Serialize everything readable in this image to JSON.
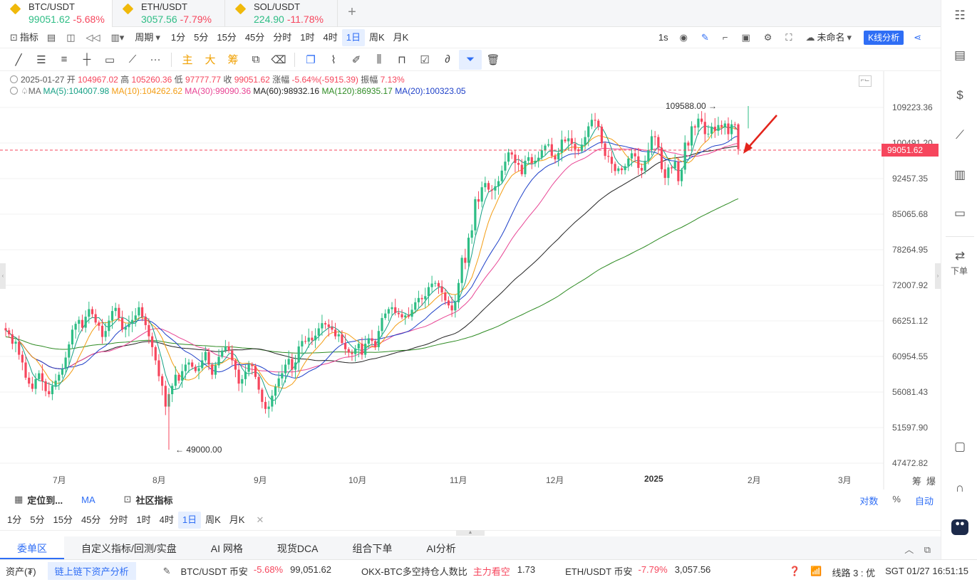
{
  "tabs": [
    {
      "symbol": "BTC/USDT",
      "price": "99051.62",
      "change": "-5.68%"
    },
    {
      "symbol": "ETH/USDT",
      "price": "3057.56",
      "change": "-7.79%"
    },
    {
      "symbol": "SOL/USDT",
      "price": "224.90",
      "change": "-11.78%"
    }
  ],
  "toolbar1": {
    "indicators": "指标",
    "period": "周期",
    "intervals": [
      "1分",
      "5分",
      "15分",
      "45分",
      "分时",
      "1时",
      "4时",
      "1日",
      "周K",
      "月K"
    ],
    "active_interval": "1日",
    "speed": "1s",
    "layout_name": "未命名",
    "kline_analysis": "K线分析"
  },
  "toolbar2": {
    "main": "主",
    "big": "大",
    "chip": "筹"
  },
  "chart": {
    "info1": {
      "date": "2025-01-27",
      "open_label": "开",
      "open": "104967.02",
      "high_label": "高",
      "high": "105260.36",
      "low_label": "低",
      "low": "97777.77",
      "close_label": "收",
      "close": "99051.62",
      "chg_label": "涨幅",
      "chg": "-5.64%(-5915.39)",
      "amp_label": "振幅",
      "amp": "7.13%"
    },
    "info2": {
      "label": "MA",
      "ma5": "MA(5):104007.98",
      "ma10": "MA(10):104262.62",
      "ma30": "MA(30):99090.36",
      "ma60": "MA(60):98932.16",
      "ma120": "MA(120):86935.17",
      "ma20": "MA(20):100323.05"
    },
    "current_price": "99051.62",
    "high_marker": "109588.00 →",
    "low_marker": "← 49000.00",
    "axis_extra": [
      "筹",
      "爆"
    ]
  },
  "chart_data": {
    "type": "candlestick",
    "y_ticks": [
      "109223.36",
      "100491.20",
      "92457.35",
      "85065.68",
      "78264.95",
      "72007.92",
      "66251.12",
      "60954.55",
      "56081.43",
      "51597.90",
      "47472.82"
    ],
    "y_scale": "log",
    "x_ticks": [
      "7月",
      "8月",
      "9月",
      "10月",
      "11月",
      "12月",
      "2025",
      "1月",
      "2月",
      "3月"
    ],
    "ma_colors": {
      "ma5": "#16a085",
      "ma10": "#f39c12",
      "ma30": "#e84393",
      "ma60": "#222222",
      "ma120": "#2e8b23",
      "ma20": "#1e40c8"
    },
    "up_color": "#2ebd85",
    "down_color": "#f6465d",
    "closes": [
      64800,
      64200,
      62800,
      63100,
      61200,
      60100,
      58000,
      57200,
      56500,
      57800,
      58600,
      57500,
      56200,
      55800,
      56900,
      57600,
      58400,
      59200,
      60800,
      62700,
      64900,
      65800,
      66400,
      65200,
      66900,
      68100,
      67300,
      66000,
      65500,
      63800,
      64700,
      66300,
      67800,
      68300,
      66700,
      64900,
      65300,
      65800,
      66400,
      67100,
      68400,
      66900,
      65600,
      63900,
      62300,
      60400,
      58200,
      56900,
      54200,
      55800,
      56900,
      58400,
      57600,
      58900,
      59800,
      60100,
      59500,
      58900,
      59300,
      60400,
      61600,
      59800,
      58400,
      59700,
      60900,
      61800,
      62400,
      61800,
      60400,
      59100,
      57200,
      57800,
      58800,
      59800,
      59600,
      58100,
      56400,
      54800,
      53900,
      54200,
      55600,
      56800,
      57900,
      58600,
      59800,
      60600,
      59100,
      60100,
      62400,
      63200,
      63100,
      63700,
      63300,
      64000,
      65100,
      65900,
      65700,
      65300,
      64900,
      63900,
      64200,
      62900,
      62000,
      61500,
      61300,
      62100,
      62800,
      61200,
      62800,
      63600,
      63200,
      62300,
      64700,
      66700,
      67400,
      68100,
      68400,
      67500,
      67300,
      66800,
      67100,
      66900,
      68000,
      69200,
      69900,
      69700,
      70200,
      71700,
      72300,
      72400,
      71800,
      70800,
      69500,
      68700,
      67900,
      69200,
      72400,
      76800,
      75900,
      80500,
      81900,
      88100,
      87600,
      90600,
      91500,
      90100,
      89900,
      90800,
      91900,
      94200,
      96200,
      98300,
      97800,
      95900,
      95500,
      93400,
      96400,
      97200,
      95800,
      96400,
      97100,
      98800,
      99900,
      100200,
      97500,
      96700,
      98200,
      101300,
      100900,
      101600,
      100300,
      99000,
      98600,
      100100,
      101900,
      104500,
      106100,
      105900,
      104400,
      100400,
      97500,
      97300,
      95700,
      94100,
      94700,
      94300,
      95200,
      96900,
      98100,
      97400,
      94800,
      94200,
      96400,
      98800,
      102100,
      101900,
      99400,
      94500,
      92600,
      94900,
      94700,
      96200,
      91900,
      94400,
      100600,
      99900,
      104500,
      104200,
      106400,
      105600,
      102600,
      102700,
      104400,
      103400,
      104800,
      104400,
      105200,
      102600,
      105000,
      104900,
      99051
    ]
  },
  "lower_bar": {
    "locate": "定位到...",
    "ma": "MA",
    "community": "社区指标",
    "intervals": [
      "1分",
      "5分",
      "15分",
      "45分",
      "分时",
      "1时",
      "4时",
      "1日",
      "周K",
      "月K"
    ],
    "active_interval": "1日",
    "right": [
      "对数",
      "%",
      "自动"
    ]
  },
  "order_tabs": [
    "委单区",
    "自定义指标/回测/实盘",
    "AI 网格",
    "现货DCA",
    "组合下单",
    "AI分析"
  ],
  "status": {
    "assets": "资产(₮)",
    "asset_link": "链上链下资产分析",
    "items": [
      {
        "name": "BTC/USDT 币安",
        "change": "-5.68%",
        "value": "99,051.62"
      },
      {
        "name": "OKX-BTC多空持仓人数比",
        "change": "主力看空",
        "value": "1.73"
      },
      {
        "name": "ETH/USDT 币安",
        "change": "-7.79%",
        "value": "3,057.56"
      }
    ],
    "line": "线路 3 : 优",
    "time": "SGT 01/27 16:51:15"
  },
  "sidebar": {
    "download": "下单"
  }
}
